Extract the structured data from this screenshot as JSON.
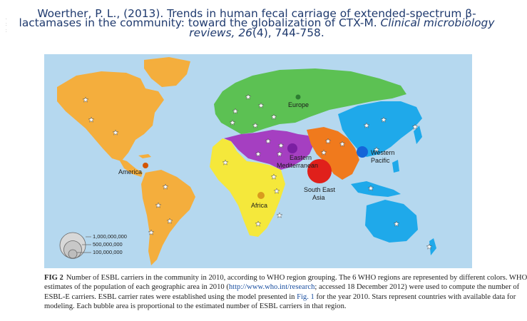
{
  "citation": {
    "line1": "Woerther, P. L., (2013). Trends in human fecal carriage of extended-spectrum β-",
    "line2_pre": "lactamases in the community: toward the globalization of CTX-M. ",
    "journal": "Clinical microbiology",
    "line3_journal": "reviews, ",
    "volume": "26",
    "issue_pages": "(4), 744-758."
  },
  "side_marks": ". : :",
  "map": {
    "colors": {
      "ocean": "#b5d8ef",
      "america": "#f4ae3d",
      "europe": "#5cc153",
      "eastern_mediterranean": "#a53fc1",
      "africa": "#f5e83b",
      "south_east_asia": "#f07a1d",
      "western_pacific": "#1fa9ea",
      "bubble_america": "#d35400",
      "bubble_europe": "#2e7d32",
      "bubble_em": "#7b1fa2",
      "bubble_africa": "#d99a1e",
      "bubble_sea": "#e0201b",
      "bubble_wp": "#1565d8"
    },
    "labels": {
      "america": "America",
      "europe": "Europe",
      "eastern_mediterranean_1": "Eastern",
      "eastern_mediterranean_2": "Mediterranean",
      "africa": "Africa",
      "south_east_asia_1": "South East",
      "south_east_asia_2": "Asia",
      "western_pacific_1": "Western",
      "western_pacific_2": "Pacific"
    },
    "legend": [
      "1,000,000,000",
      "500,000,000",
      "100,000,000"
    ],
    "star_icon": "star-icon"
  },
  "caption": {
    "fig": "FIG 2",
    "line1": "Number of ESBL carriers in the community in 2010, according to WHO region grouping. The 6 WHO regions are represented by different colors. WHO",
    "line2_pre": "estimates of the population of each geographic area in 2010 (",
    "line2_link": "http://www.who.int/research",
    "line2_post": "; accessed 18 December 2012) were used to compute the number of",
    "line3_pre": "ESBL-E carriers. ESBL carrier rates were established using the model presented in ",
    "line3_link": "Fig. 1",
    "line3_post": " for the year 2010. Stars represent countries with available data for",
    "line4": "modeling. Each bubble area is proportional to the estimated number of ESBL carriers in that region."
  }
}
